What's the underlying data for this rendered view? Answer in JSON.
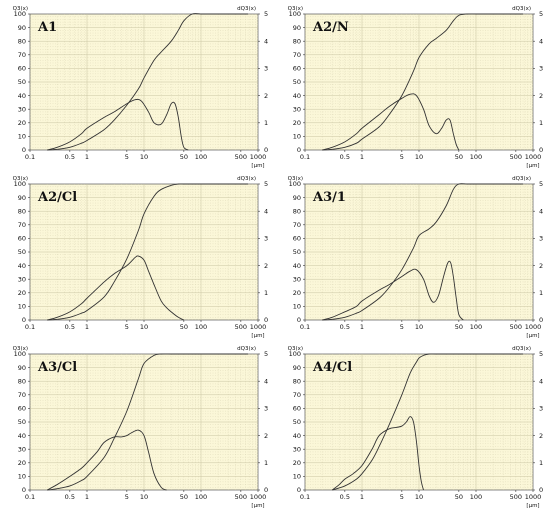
{
  "chart_data": [
    {
      "type": "line",
      "label": "A1",
      "axes": {
        "left_label": "Q3(x)",
        "right_label": "dQ3(x)",
        "x_unit": "[µm]",
        "x_scale": "log",
        "xlim": [
          0.1,
          1000
        ],
        "ylim_left": [
          0,
          100
        ],
        "ylim_right": [
          0,
          5
        ],
        "x_ticks": [
          "0.1",
          "0.5",
          "1",
          "5",
          "10",
          "50",
          "100",
          "500",
          "1000"
        ],
        "y_left_ticks": [
          "0",
          "10",
          "20",
          "30",
          "40",
          "50",
          "60",
          "70",
          "80",
          "90",
          "100"
        ],
        "y_right_ticks": [
          "0",
          "1",
          "2",
          "3",
          "4",
          "5"
        ],
        "grid": true
      },
      "series": [
        {
          "kind": "cumulative",
          "axis": "left",
          "x": [
            0.2,
            0.3,
            0.5,
            0.8,
            1,
            2,
            3,
            5,
            8,
            10,
            15,
            20,
            30,
            40,
            50,
            70,
            100
          ],
          "y": [
            0,
            0.5,
            2,
            5,
            7,
            15,
            22,
            33,
            45,
            53,
            66,
            72,
            80,
            88,
            95,
            100,
            100
          ]
        },
        {
          "kind": "density",
          "axis": "right",
          "x": [
            0.2,
            0.3,
            0.5,
            0.8,
            1,
            2,
            3,
            5,
            7,
            9,
            12,
            15,
            20,
            25,
            30,
            35,
            40,
            45,
            50,
            60
          ],
          "y": [
            0,
            0.1,
            0.3,
            0.6,
            0.8,
            1.2,
            1.4,
            1.7,
            1.85,
            1.8,
            1.4,
            1.0,
            0.95,
            1.3,
            1.7,
            1.7,
            1.2,
            0.5,
            0.1,
            0
          ]
        }
      ]
    },
    {
      "type": "line",
      "label": "A2/N",
      "axes": {
        "left_label": "Q3(x)",
        "right_label": "dQ3(x)",
        "x_unit": "[µm]",
        "x_scale": "log",
        "xlim": [
          0.1,
          1000
        ],
        "ylim_left": [
          0,
          100
        ],
        "ylim_right": [
          0,
          5
        ],
        "x_ticks": [
          "0.1",
          "0.5",
          "1",
          "5",
          "10",
          "50",
          "100",
          "500",
          "1000"
        ],
        "y_left_ticks": [
          "0",
          "10",
          "20",
          "30",
          "40",
          "50",
          "60",
          "70",
          "80",
          "90",
          "100"
        ],
        "y_right_ticks": [
          "0",
          "1",
          "2",
          "3",
          "4",
          "5"
        ],
        "grid": true
      },
      "series": [
        {
          "kind": "cumulative",
          "axis": "left",
          "x": [
            0.2,
            0.3,
            0.5,
            0.8,
            1,
            2,
            3,
            5,
            8,
            10,
            15,
            20,
            30,
            40,
            50,
            70,
            100
          ],
          "y": [
            0,
            0.5,
            2,
            5,
            8,
            17,
            26,
            40,
            58,
            68,
            78,
            82,
            88,
            95,
            99,
            100,
            100
          ]
        },
        {
          "kind": "density",
          "axis": "right",
          "x": [
            0.2,
            0.3,
            0.5,
            0.8,
            1,
            2,
            3,
            5,
            7,
            9,
            12,
            15,
            20,
            25,
            30,
            35,
            40,
            45,
            50
          ],
          "y": [
            0,
            0.1,
            0.3,
            0.6,
            0.8,
            1.3,
            1.6,
            1.9,
            2.05,
            2.0,
            1.5,
            0.9,
            0.6,
            0.8,
            1.1,
            1.1,
            0.6,
            0.2,
            0
          ]
        }
      ]
    },
    {
      "type": "line",
      "label": "A2/Cl",
      "axes": {
        "left_label": "Q3(x)",
        "right_label": "dQ3(x)",
        "x_unit": "[µm]",
        "x_scale": "log",
        "xlim": [
          0.1,
          1000
        ],
        "ylim_left": [
          0,
          100
        ],
        "ylim_right": [
          0,
          5
        ],
        "x_ticks": [
          "0.1",
          "0.5",
          "1",
          "5",
          "10",
          "50",
          "100",
          "500",
          "1000"
        ],
        "y_left_ticks": [
          "0",
          "10",
          "20",
          "30",
          "40",
          "50",
          "60",
          "70",
          "80",
          "90",
          "100"
        ],
        "y_right_ticks": [
          "0",
          "1",
          "2",
          "3",
          "4",
          "5"
        ],
        "grid": true
      },
      "series": [
        {
          "kind": "cumulative",
          "axis": "left",
          "x": [
            0.2,
            0.3,
            0.5,
            0.8,
            1,
            2,
            3,
            5,
            8,
            10,
            15,
            20,
            30,
            40,
            50,
            70,
            100
          ],
          "y": [
            0,
            0.5,
            2,
            5,
            7,
            17,
            28,
            45,
            66,
            78,
            91,
            96,
            99,
            100,
            100,
            100,
            100
          ]
        },
        {
          "kind": "density",
          "axis": "right",
          "x": [
            0.2,
            0.3,
            0.5,
            0.8,
            1,
            2,
            3,
            5,
            7,
            8,
            10,
            12,
            15,
            20,
            25,
            30,
            40,
            50
          ],
          "y": [
            0,
            0.1,
            0.3,
            0.6,
            0.8,
            1.4,
            1.7,
            2.0,
            2.3,
            2.35,
            2.2,
            1.8,
            1.3,
            0.7,
            0.45,
            0.3,
            0.1,
            0
          ]
        }
      ]
    },
    {
      "type": "line",
      "label": "A3/1",
      "axes": {
        "left_label": "Q3(x)",
        "right_label": "dQ3(x)",
        "x_unit": "[µm]",
        "x_scale": "log",
        "xlim": [
          0.1,
          1000
        ],
        "ylim_left": [
          0,
          100
        ],
        "ylim_right": [
          0,
          5
        ],
        "x_ticks": [
          "0.1",
          "0.5",
          "1",
          "5",
          "10",
          "50",
          "100",
          "500",
          "1000"
        ],
        "y_left_ticks": [
          "0",
          "10",
          "20",
          "30",
          "40",
          "50",
          "60",
          "70",
          "80",
          "90",
          "100"
        ],
        "y_right_ticks": [
          "0",
          "1",
          "2",
          "3",
          "4",
          "5"
        ],
        "grid": true
      },
      "series": [
        {
          "kind": "cumulative",
          "axis": "left",
          "x": [
            0.2,
            0.3,
            0.5,
            0.8,
            1,
            2,
            3,
            5,
            8,
            10,
            15,
            20,
            30,
            40,
            50,
            70,
            100
          ],
          "y": [
            0,
            0.5,
            2,
            5,
            7,
            16,
            24,
            37,
            53,
            62,
            67,
            72,
            84,
            96,
            100,
            100,
            100
          ]
        },
        {
          "kind": "density",
          "axis": "right",
          "x": [
            0.2,
            0.3,
            0.5,
            0.8,
            1,
            2,
            3,
            5,
            7,
            9,
            12,
            15,
            18,
            22,
            27,
            32,
            36,
            40,
            45,
            50,
            60
          ],
          "y": [
            0,
            0.1,
            0.3,
            0.5,
            0.7,
            1.1,
            1.3,
            1.6,
            1.8,
            1.85,
            1.5,
            0.9,
            0.65,
            0.9,
            1.6,
            2.1,
            2.1,
            1.6,
            0.8,
            0.2,
            0
          ]
        }
      ]
    },
    {
      "type": "line",
      "label": "A3/Cl",
      "axes": {
        "left_label": "Q3(x)",
        "right_label": "dQ3(x)",
        "x_unit": "[µm]",
        "x_scale": "log",
        "xlim": [
          0.1,
          1000
        ],
        "ylim_left": [
          0,
          100
        ],
        "ylim_right": [
          0,
          5
        ],
        "x_ticks": [
          "0.1",
          "0.5",
          "1",
          "5",
          "10",
          "50",
          "100",
          "500",
          "1000"
        ],
        "y_left_ticks": [
          "0",
          "10",
          "20",
          "30",
          "40",
          "50",
          "60",
          "70",
          "80",
          "90",
          "100"
        ],
        "y_right_ticks": [
          "0",
          "1",
          "2",
          "3",
          "4",
          "5"
        ],
        "grid": true
      },
      "series": [
        {
          "kind": "cumulative",
          "axis": "left",
          "x": [
            0.2,
            0.3,
            0.5,
            0.8,
            1,
            2,
            3,
            5,
            8,
            10,
            15,
            20,
            30,
            50,
            100
          ],
          "y": [
            0,
            1,
            3,
            7,
            10,
            24,
            38,
            58,
            82,
            93,
            99,
            100,
            100,
            100,
            100
          ]
        },
        {
          "kind": "density",
          "axis": "right",
          "x": [
            0.2,
            0.3,
            0.5,
            0.8,
            1,
            1.5,
            2,
            3,
            4,
            5,
            6,
            8,
            10,
            12,
            15,
            20,
            25
          ],
          "y": [
            0,
            0.2,
            0.5,
            0.8,
            1.0,
            1.4,
            1.75,
            1.95,
            1.95,
            2.0,
            2.1,
            2.2,
            2.0,
            1.4,
            0.6,
            0.1,
            0
          ]
        }
      ]
    },
    {
      "type": "line",
      "label": "A4/Cl",
      "axes": {
        "left_label": "Q3(x)",
        "right_label": "dQ3(x)",
        "x_unit": "[µm]",
        "x_scale": "log",
        "xlim": [
          0.1,
          1000
        ],
        "ylim_left": [
          0,
          100
        ],
        "ylim_right": [
          0,
          5
        ],
        "x_ticks": [
          "0.1",
          "0.5",
          "1",
          "5",
          "10",
          "50",
          "100",
          "500",
          "1000"
        ],
        "y_left_ticks": [
          "0",
          "10",
          "20",
          "30",
          "40",
          "50",
          "60",
          "70",
          "80",
          "90",
          "100"
        ],
        "y_right_ticks": [
          "0",
          "1",
          "2",
          "3",
          "4",
          "5"
        ],
        "grid": true
      },
      "series": [
        {
          "kind": "cumulative",
          "axis": "left",
          "x": [
            0.3,
            0.5,
            0.8,
            1,
            1.5,
            2,
            3,
            5,
            7,
            9,
            10,
            12,
            15,
            20,
            50,
            100
          ],
          "y": [
            0,
            3,
            8,
            12,
            22,
            32,
            48,
            70,
            86,
            94,
            97,
            99,
            100,
            100,
            100,
            100
          ]
        },
        {
          "kind": "density",
          "axis": "right",
          "x": [
            0.3,
            0.4,
            0.5,
            0.7,
            1,
            1.5,
            2,
            3,
            4,
            5,
            6,
            7,
            8,
            9,
            10,
            11,
            12
          ],
          "y": [
            0,
            0.2,
            0.4,
            0.6,
            0.9,
            1.5,
            2.0,
            2.25,
            2.3,
            2.35,
            2.5,
            2.7,
            2.5,
            1.8,
            0.9,
            0.3,
            0
          ]
        }
      ]
    }
  ]
}
